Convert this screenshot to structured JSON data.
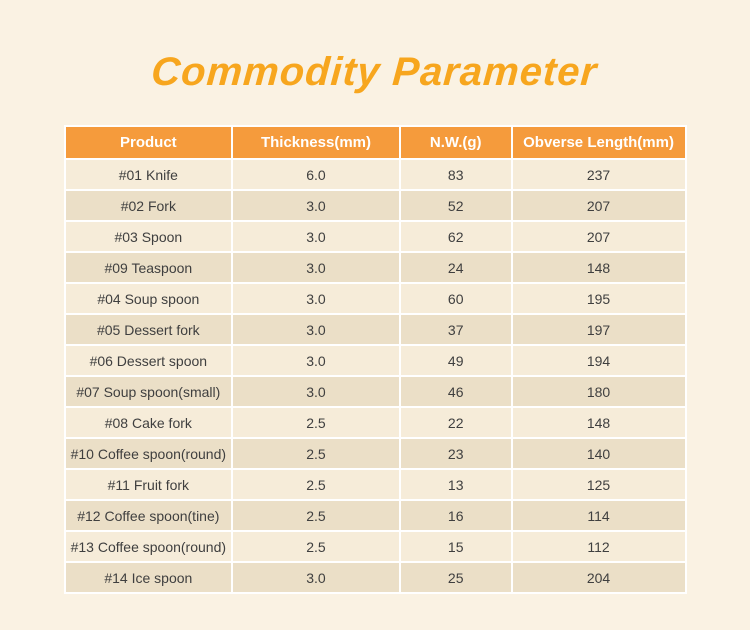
{
  "page": {
    "background_color": "#faf2e3",
    "accent_color": "#f7a61e",
    "header_bg_color": "#f59b3c",
    "row_light_color": "#f6ecd9",
    "row_dark_color": "#ebdfc7"
  },
  "title": "Commodity Parameter",
  "table": {
    "columns": [
      "Product",
      "Thickness(mm)",
      "N.W.(g)",
      "Obverse Length(mm)"
    ],
    "rows": [
      {
        "product": "#01 Knife",
        "thickness": "6.0",
        "nw": "83",
        "length": "237"
      },
      {
        "product": "#02 Fork",
        "thickness": "3.0",
        "nw": "52",
        "length": "207"
      },
      {
        "product": "#03 Spoon",
        "thickness": "3.0",
        "nw": "62",
        "length": "207"
      },
      {
        "product": "#09 Teaspoon",
        "thickness": "3.0",
        "nw": "24",
        "length": "148"
      },
      {
        "product": "#04 Soup spoon",
        "thickness": "3.0",
        "nw": "60",
        "length": "195"
      },
      {
        "product": "#05 Dessert fork",
        "thickness": "3.0",
        "nw": "37",
        "length": "197"
      },
      {
        "product": "#06 Dessert spoon",
        "thickness": "3.0",
        "nw": "49",
        "length": "194"
      },
      {
        "product": "#07 Soup spoon(small)",
        "thickness": "3.0",
        "nw": "46",
        "length": "180"
      },
      {
        "product": "#08 Cake fork",
        "thickness": "2.5",
        "nw": "22",
        "length": "148"
      },
      {
        "product": "#10 Coffee spoon(round)",
        "thickness": "2.5",
        "nw": "23",
        "length": "140"
      },
      {
        "product": "#11 Fruit fork",
        "thickness": "2.5",
        "nw": "13",
        "length": "125"
      },
      {
        "product": "#12 Coffee spoon(tine)",
        "thickness": "2.5",
        "nw": "16",
        "length": "114"
      },
      {
        "product": "#13 Coffee spoon(round)",
        "thickness": "2.5",
        "nw": "15",
        "length": "112"
      },
      {
        "product": "#14 Ice spoon",
        "thickness": "3.0",
        "nw": "25",
        "length": "204"
      }
    ]
  }
}
